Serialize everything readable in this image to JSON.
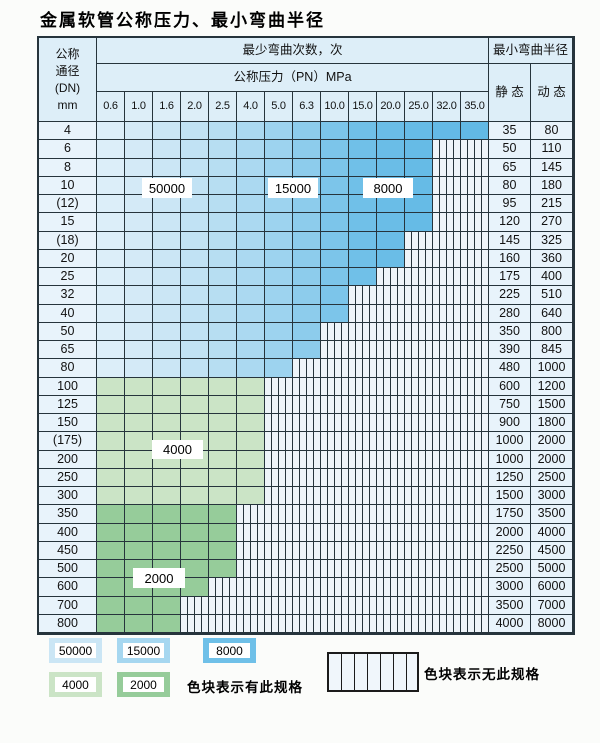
{
  "title": "金属软管公称压力、最小弯曲半径",
  "table": {
    "header": {
      "dn_lines": [
        "公称",
        "通径",
        "(DN)",
        "mm"
      ],
      "min_bend_cycles": "最少弯曲次数，次",
      "min_bend_radius": "最小弯曲半径",
      "nominal_pressure": "公称压力（PN）MPa",
      "static_label": "静 态",
      "dynamic_label": "动 态",
      "pressure_values": [
        "0.6",
        "1.0",
        "1.6",
        "2.0",
        "2.5",
        "4.0",
        "5.0",
        "6.3",
        "10.0",
        "15.0",
        "20.0",
        "25.0",
        "32.0",
        "35.0"
      ]
    },
    "overlay_labels": [
      "50000",
      "15000",
      "8000",
      "4000",
      "2000"
    ],
    "rows": [
      {
        "dn": "4",
        "family": "blue",
        "colored_cols": 14,
        "max_pn_with_spec": "35.0",
        "static": "35",
        "dynamic": "80"
      },
      {
        "dn": "6",
        "family": "blue",
        "colored_cols": 12,
        "max_pn_with_spec": "25.0",
        "static": "50",
        "dynamic": "110"
      },
      {
        "dn": "8",
        "family": "blue",
        "colored_cols": 12,
        "max_pn_with_spec": "25.0",
        "static": "65",
        "dynamic": "145"
      },
      {
        "dn": "10",
        "family": "blue",
        "colored_cols": 12,
        "max_pn_with_spec": "25.0",
        "static": "80",
        "dynamic": "180"
      },
      {
        "dn": "(12)",
        "family": "blue",
        "colored_cols": 12,
        "max_pn_with_spec": "25.0",
        "static": "95",
        "dynamic": "215"
      },
      {
        "dn": "15",
        "family": "blue",
        "colored_cols": 12,
        "max_pn_with_spec": "25.0",
        "static": "120",
        "dynamic": "270"
      },
      {
        "dn": "(18)",
        "family": "blue",
        "colored_cols": 11,
        "max_pn_with_spec": "20.0",
        "static": "145",
        "dynamic": "325"
      },
      {
        "dn": "20",
        "family": "blue",
        "colored_cols": 11,
        "max_pn_with_spec": "20.0",
        "static": "160",
        "dynamic": "360"
      },
      {
        "dn": "25",
        "family": "blue",
        "colored_cols": 10,
        "max_pn_with_spec": "15.0",
        "static": "175",
        "dynamic": "400"
      },
      {
        "dn": "32",
        "family": "blue",
        "colored_cols": 9,
        "max_pn_with_spec": "10.0",
        "static": "225",
        "dynamic": "510"
      },
      {
        "dn": "40",
        "family": "blue",
        "colored_cols": 9,
        "max_pn_with_spec": "10.0",
        "static": "280",
        "dynamic": "640"
      },
      {
        "dn": "50",
        "family": "blue",
        "colored_cols": 8,
        "max_pn_with_spec": "6.3",
        "static": "350",
        "dynamic": "800"
      },
      {
        "dn": "65",
        "family": "blue",
        "colored_cols": 8,
        "max_pn_with_spec": "6.3",
        "static": "390",
        "dynamic": "845"
      },
      {
        "dn": "80",
        "family": "blue",
        "colored_cols": 7,
        "max_pn_with_spec": "5.0",
        "static": "480",
        "dynamic": "1000"
      },
      {
        "dn": "100",
        "family": "green_light",
        "colored_cols": 6,
        "max_pn_with_spec": "4.0",
        "static": "600",
        "dynamic": "1200"
      },
      {
        "dn": "125",
        "family": "green_light",
        "colored_cols": 6,
        "max_pn_with_spec": "4.0",
        "static": "750",
        "dynamic": "1500"
      },
      {
        "dn": "150",
        "family": "green_light",
        "colored_cols": 6,
        "max_pn_with_spec": "4.0",
        "static": "900",
        "dynamic": "1800"
      },
      {
        "dn": "(175)",
        "family": "green_light",
        "colored_cols": 6,
        "max_pn_with_spec": "4.0",
        "static": "1000",
        "dynamic": "2000"
      },
      {
        "dn": "200",
        "family": "green_light",
        "colored_cols": 6,
        "max_pn_with_spec": "4.0",
        "static": "1000",
        "dynamic": "2000"
      },
      {
        "dn": "250",
        "family": "green_light",
        "colored_cols": 6,
        "max_pn_with_spec": "4.0",
        "static": "1250",
        "dynamic": "2500"
      },
      {
        "dn": "300",
        "family": "green_light",
        "colored_cols": 6,
        "max_pn_with_spec": "4.0",
        "static": "1500",
        "dynamic": "3000"
      },
      {
        "dn": "350",
        "family": "green_dark",
        "colored_cols": 5,
        "max_pn_with_spec": "2.5",
        "static": "1750",
        "dynamic": "3500"
      },
      {
        "dn": "400",
        "family": "green_dark",
        "colored_cols": 5,
        "max_pn_with_spec": "2.5",
        "static": "2000",
        "dynamic": "4000"
      },
      {
        "dn": "450",
        "family": "green_dark",
        "colored_cols": 5,
        "max_pn_with_spec": "2.5",
        "static": "2250",
        "dynamic": "4500"
      },
      {
        "dn": "500",
        "family": "green_dark",
        "colored_cols": 5,
        "max_pn_with_spec": "2.5",
        "static": "2500",
        "dynamic": "5000"
      },
      {
        "dn": "600",
        "family": "green_dark",
        "colored_cols": 4,
        "max_pn_with_spec": "2.0",
        "static": "3000",
        "dynamic": "6000"
      },
      {
        "dn": "700",
        "family": "green_dark",
        "colored_cols": 3,
        "max_pn_with_spec": "1.6",
        "static": "3500",
        "dynamic": "7000"
      },
      {
        "dn": "800",
        "family": "green_dark",
        "colored_cols": 3,
        "max_pn_with_spec": "1.6",
        "static": "4000",
        "dynamic": "8000"
      }
    ]
  },
  "legend": {
    "items": [
      {
        "label": "50000",
        "color": "#cbe6f5"
      },
      {
        "label": "15000",
        "color": "#a6d7f0"
      },
      {
        "label": "8000",
        "color": "#6fc0e8"
      },
      {
        "label": "4000",
        "color": "#cbe4c6"
      },
      {
        "label": "2000",
        "color": "#96cc9a"
      }
    ],
    "has_spec_label": "色块表示有此规格",
    "no_spec_label": "色块表示无此规格"
  },
  "colors": {
    "grid_line": "#26343c",
    "header_bg": "#ddeef8",
    "label_cell_bg": "#e8f3fb",
    "stripe_bg": "#eef4f9",
    "blue_scale": [
      "#dceef9",
      "#d4eaf7",
      "#cbe6f5",
      "#c1e2f4",
      "#b7def2",
      "#abd9f1",
      "#9dd3ef",
      "#8dccec",
      "#7cc5ea",
      "#70c0e8",
      "#6abde7",
      "#66bbe6",
      "#64bae6",
      "#62b9e5"
    ],
    "green_light": "#cbe4c6",
    "green_dark": "#96cc9a"
  }
}
